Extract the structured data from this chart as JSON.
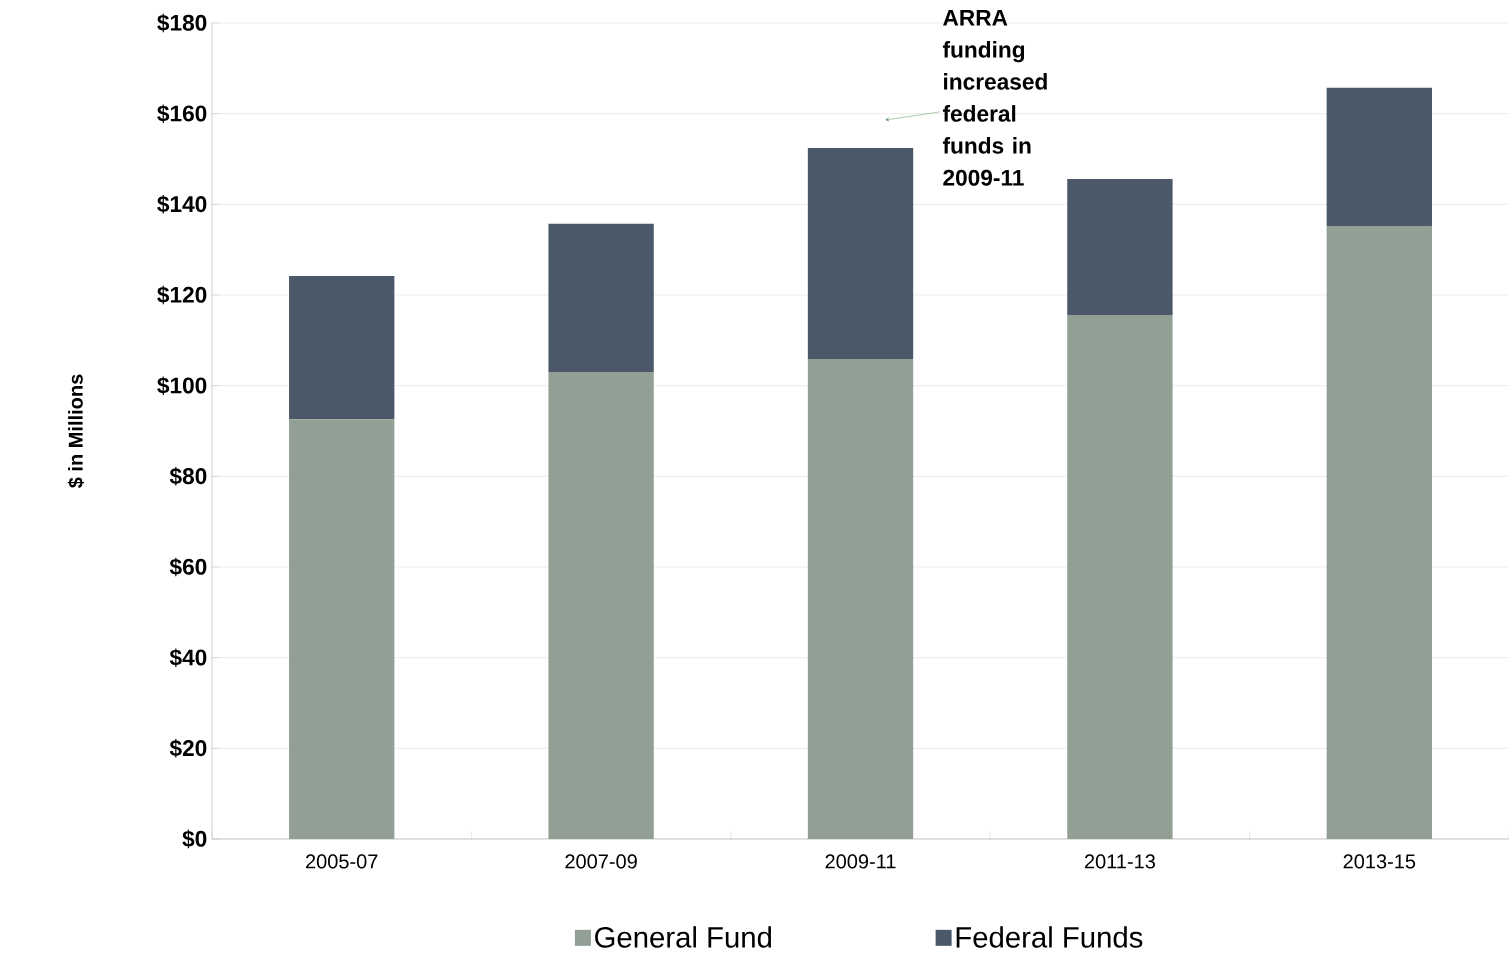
{
  "chart_data": {
    "type": "bar",
    "stacked": true,
    "ylabel": "$ in Millions",
    "categories": [
      "2005-07",
      "2007-09",
      "2009-11",
      "2011-13",
      "2013-15"
    ],
    "series": [
      {
        "name": "General Fund",
        "color": "#919f94",
        "values": [
          92.6,
          103,
          105.9,
          115.6,
          135.2
        ]
      },
      {
        "name": "Federal Funds",
        "color": "#4b5869",
        "values": [
          31.6,
          32.7,
          46.5,
          30,
          30.5
        ]
      }
    ],
    "ylim": [
      0,
      180
    ],
    "yticks": [
      {
        "value": 0,
        "label": "$0"
      },
      {
        "value": 20,
        "label": "$20"
      },
      {
        "value": 40,
        "label": "$40"
      },
      {
        "value": 60,
        "label": "$60"
      },
      {
        "value": 80,
        "label": "$80"
      },
      {
        "value": 100,
        "label": "$100"
      },
      {
        "value": 120,
        "label": "$120"
      },
      {
        "value": 140,
        "label": "$140"
      },
      {
        "value": 160,
        "label": "$160"
      },
      {
        "value": 180,
        "label": "$180"
      }
    ],
    "grid": "y",
    "legend": "bottom",
    "annotations": [
      "ARRA funding increased federal funds in 2009-11"
    ]
  }
}
